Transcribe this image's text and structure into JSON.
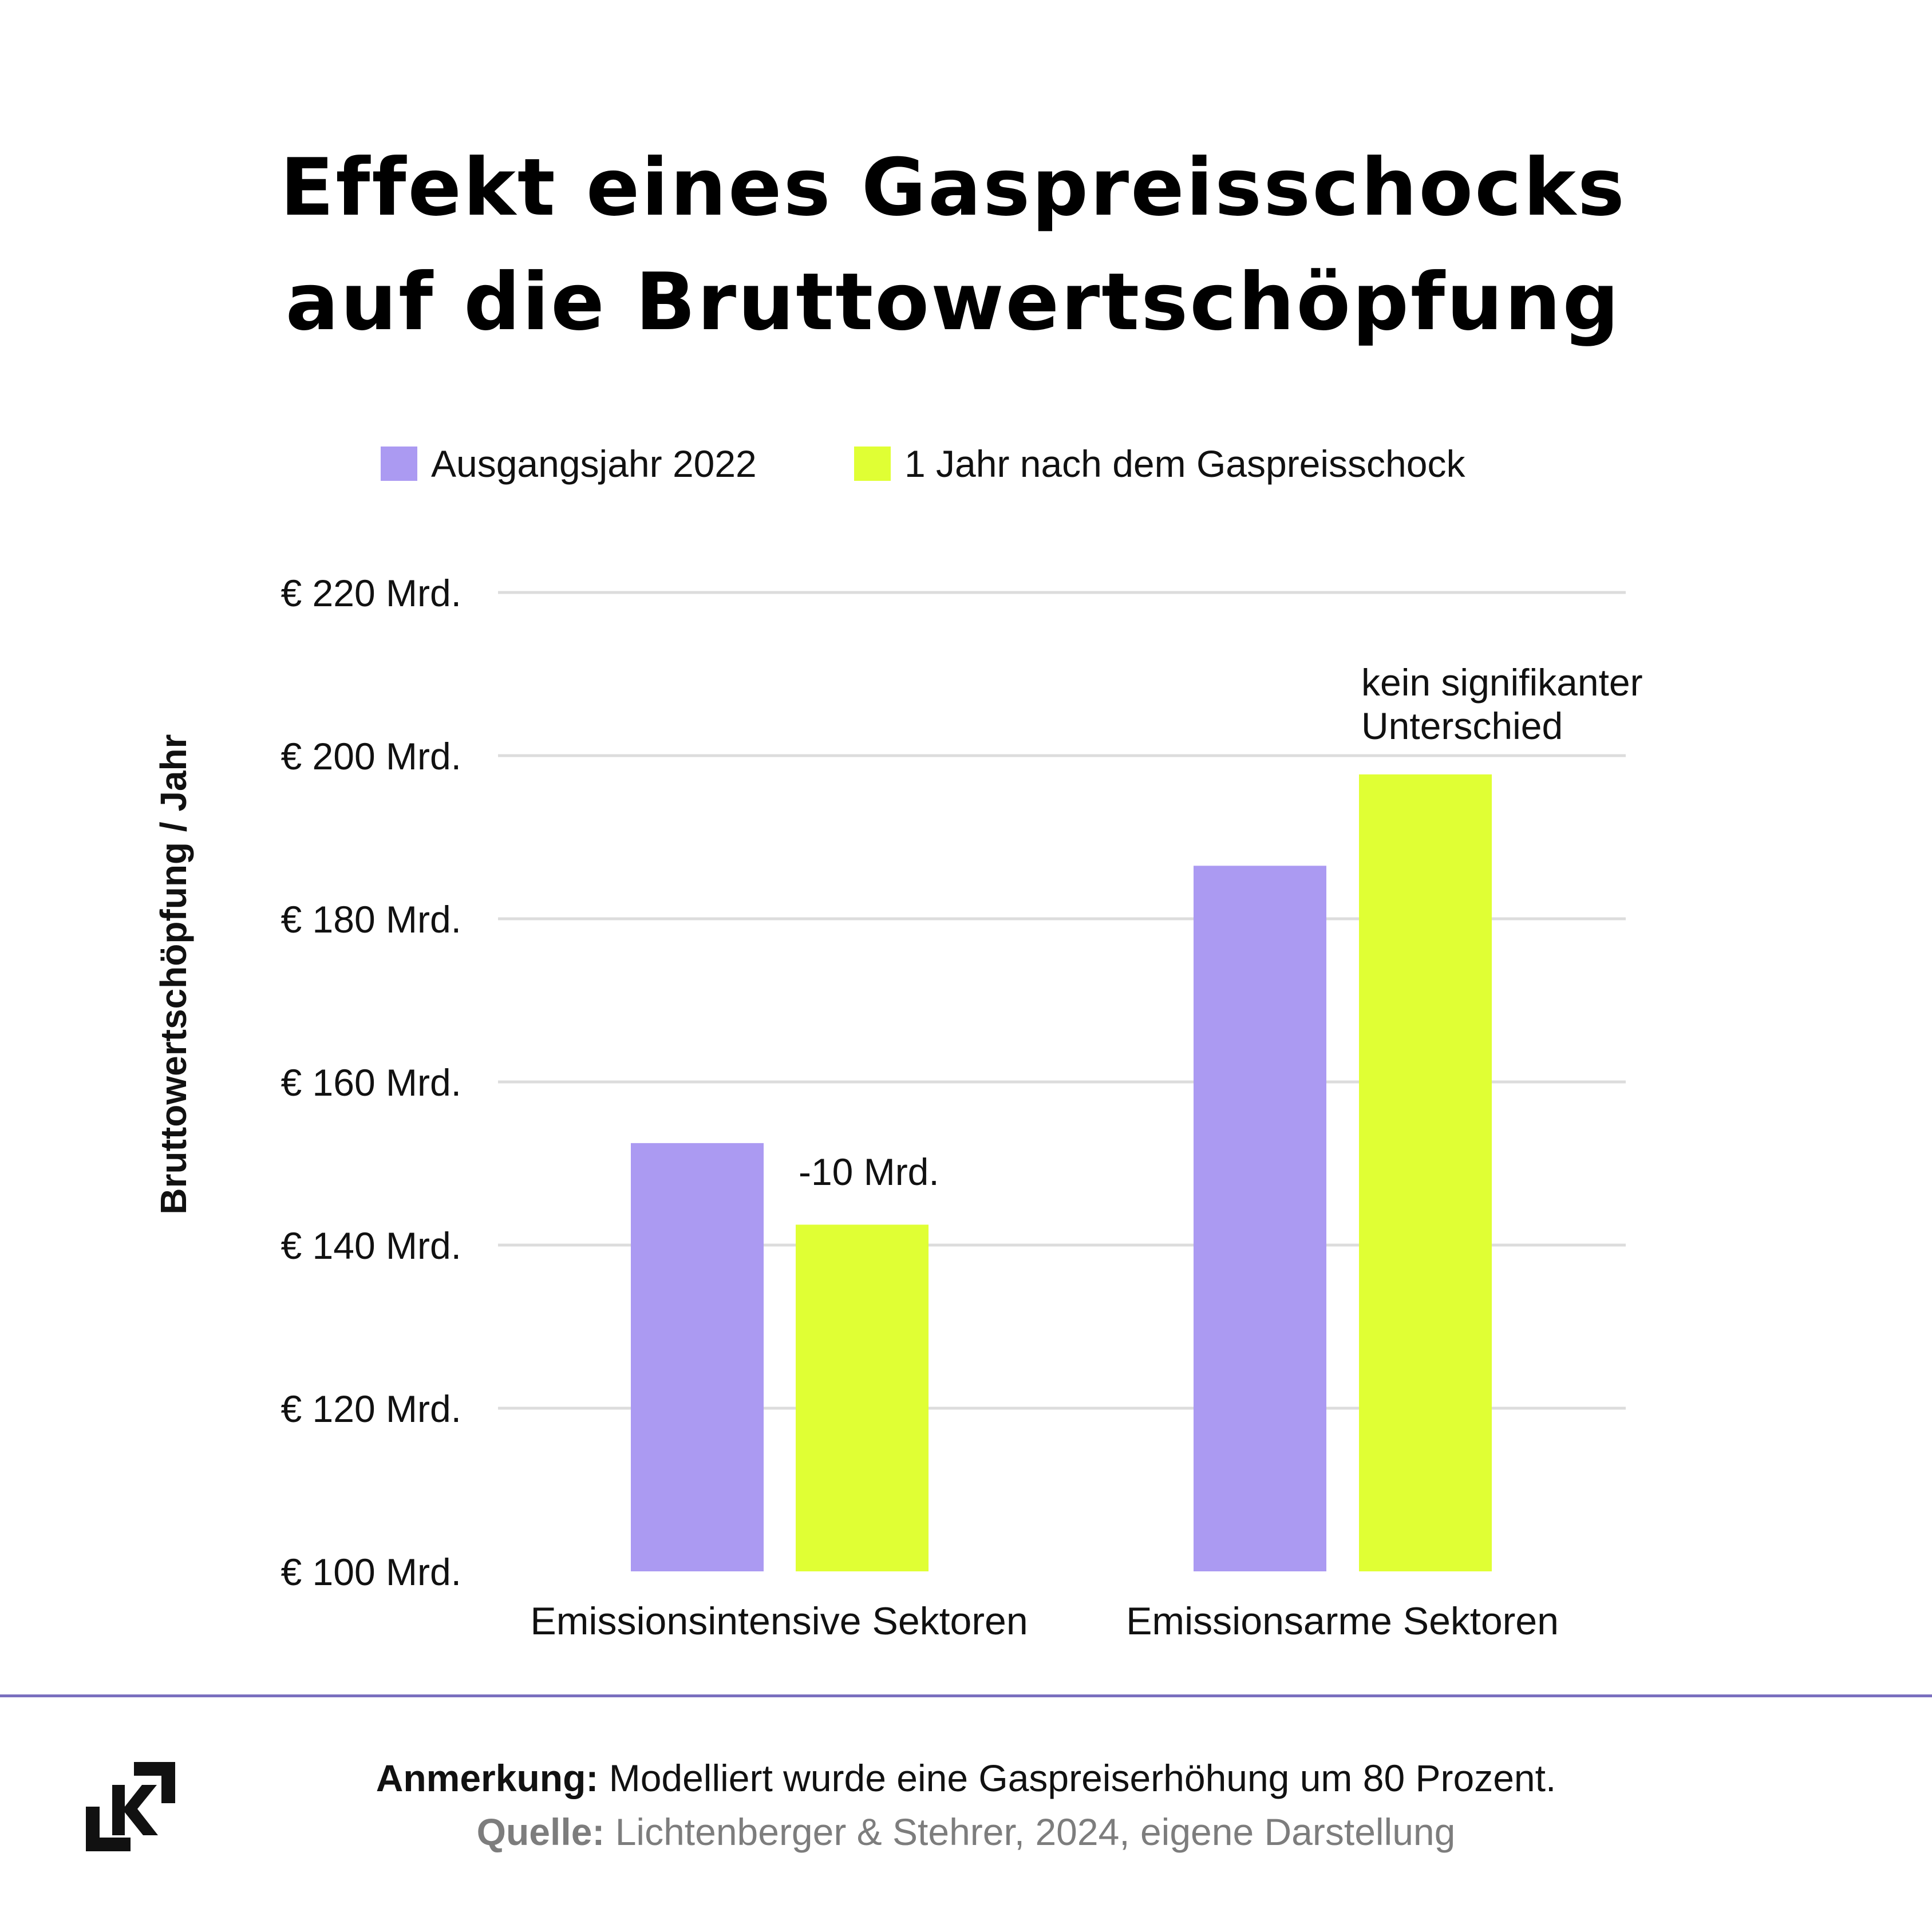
{
  "title": {
    "line1": "Effekt eines Gaspreisschocks",
    "line2": "auf die Bruttowertschöpfung"
  },
  "colors": {
    "series_a": "#ab9af2",
    "series_b": "#e0ff34",
    "grid": "#dcdcdc",
    "divider": "#7a6fbf"
  },
  "chart_data": {
    "type": "bar",
    "title": "Effekt eines Gaspreisschocks auf die Bruttowertschöpfung",
    "xlabel": "",
    "ylabel": "Bruttowertschöpfung / Jahr",
    "ylim": [
      100,
      220
    ],
    "yticks": [
      100,
      120,
      140,
      160,
      180,
      200,
      220
    ],
    "ytick_labels": [
      "€ 100 Mrd.",
      "€ 120 Mrd.",
      "€ 140 Mrd.",
      "€ 160 Mrd.",
      "€ 180 Mrd.",
      "€ 200 Mrd.",
      "€ 220 Mrd."
    ],
    "grid": true,
    "legend": "top",
    "categories": [
      "Emissionsintensive Sektoren",
      "Emissionsarme Sektoren"
    ],
    "series": [
      {
        "name": "Ausgangsjahr 2022",
        "values": [
          152.5,
          186.5
        ]
      },
      {
        "name": "1 Jahr nach dem Gaspreisschock",
        "values": [
          142.5,
          197.7
        ]
      }
    ],
    "annotations": [
      {
        "category": 0,
        "text": "-10 Mrd."
      },
      {
        "category": 1,
        "text": "kein signifikanter Unterschied",
        "lines": [
          "kein signifikanter",
          "Unterschied"
        ]
      }
    ]
  },
  "footer": {
    "note_label": "Anmerkung:",
    "note_text": " Modelliert wurde eine Gaspreiserhöhung um 80 Prozent.",
    "source_label": "Quelle:",
    "source_text": " Lichtenberger & Stehrer, 2024, eigene Darstellung"
  },
  "logo": {
    "icon": "k-bracket-logo-icon"
  }
}
